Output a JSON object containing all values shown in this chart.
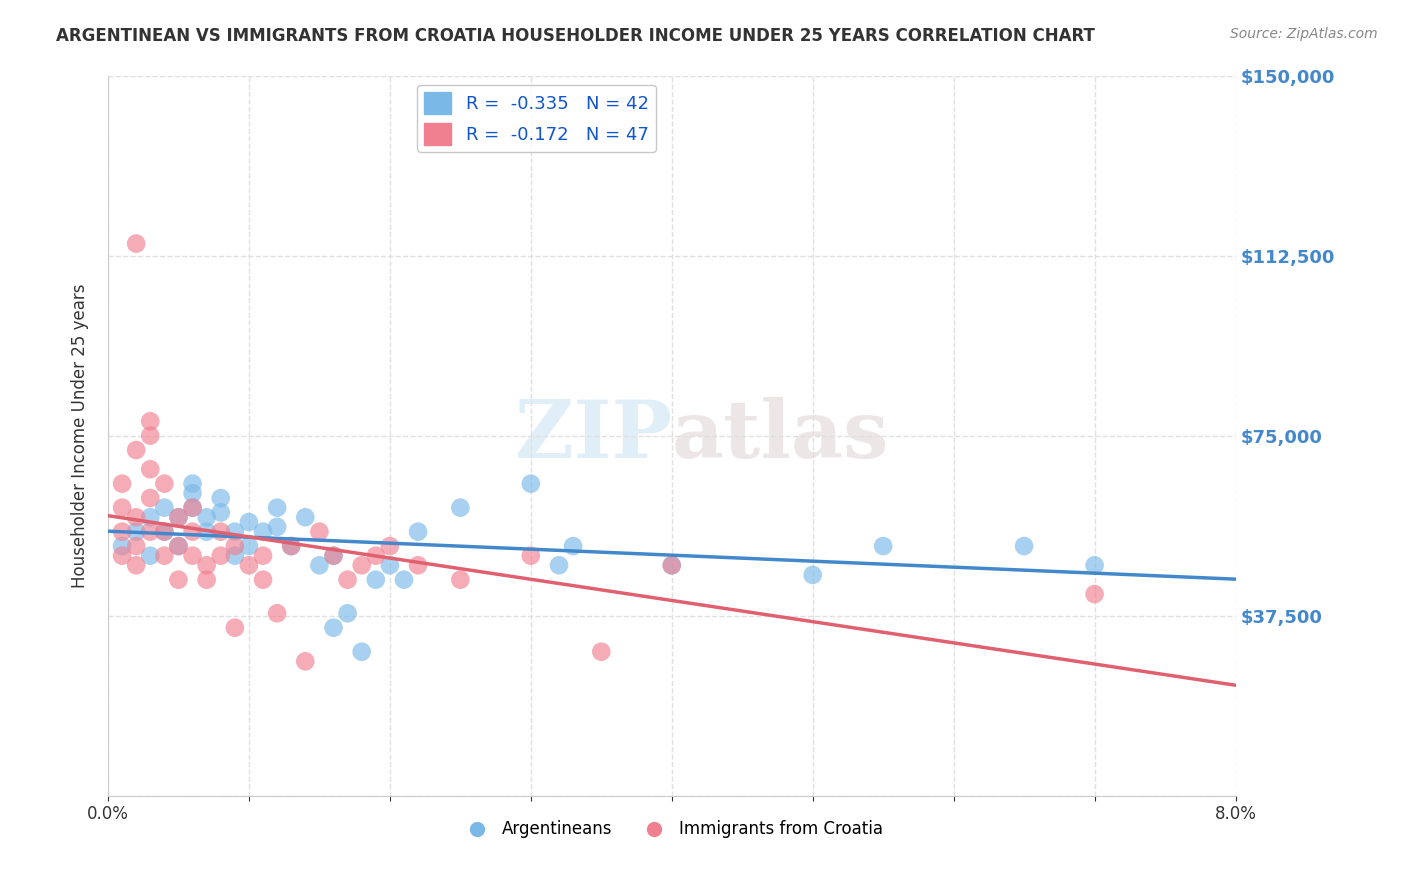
{
  "title": "ARGENTINEAN VS IMMIGRANTS FROM CROATIA HOUSEHOLDER INCOME UNDER 25 YEARS CORRELATION CHART",
  "source": "Source: ZipAtlas.com",
  "ylabel": "Householder Income Under 25 years",
  "xlim": [
    0.0,
    0.08
  ],
  "ylim": [
    0,
    150000
  ],
  "yticks": [
    0,
    37500,
    75000,
    112500,
    150000
  ],
  "ytick_labels": [
    "",
    "$37,500",
    "$75,000",
    "$112,500",
    "$150,000"
  ],
  "xticks": [
    0.0,
    0.01,
    0.02,
    0.03,
    0.04,
    0.05,
    0.06,
    0.07,
    0.08
  ],
  "xtick_labels": [
    "0.0%",
    "",
    "",
    "",
    "",
    "",
    "",
    "",
    "8.0%"
  ],
  "watermark_zip": "ZIP",
  "watermark_atlas": "atlas",
  "legend_entries": [
    {
      "label": "R =  -0.335   N = 42",
      "color": "#a8d0f0"
    },
    {
      "label": "R =  -0.172   N = 47",
      "color": "#f4a0b0"
    }
  ],
  "legend_label_argentineans": "Argentineans",
  "legend_label_croatia": "Immigrants from Croatia",
  "blue_color": "#7ab8e8",
  "pink_color": "#f08090",
  "blue_line_color": "#4488cc",
  "pink_line_color": "#e06070",
  "blue_scatter": [
    [
      0.001,
      52000
    ],
    [
      0.002,
      55000
    ],
    [
      0.003,
      58000
    ],
    [
      0.003,
      50000
    ],
    [
      0.004,
      60000
    ],
    [
      0.004,
      55000
    ],
    [
      0.005,
      52000
    ],
    [
      0.005,
      58000
    ],
    [
      0.006,
      65000
    ],
    [
      0.006,
      63000
    ],
    [
      0.006,
      60000
    ],
    [
      0.007,
      58000
    ],
    [
      0.007,
      55000
    ],
    [
      0.008,
      62000
    ],
    [
      0.008,
      59000
    ],
    [
      0.009,
      55000
    ],
    [
      0.009,
      50000
    ],
    [
      0.01,
      57000
    ],
    [
      0.01,
      52000
    ],
    [
      0.011,
      55000
    ],
    [
      0.012,
      60000
    ],
    [
      0.012,
      56000
    ],
    [
      0.013,
      52000
    ],
    [
      0.014,
      58000
    ],
    [
      0.015,
      48000
    ],
    [
      0.016,
      50000
    ],
    [
      0.016,
      35000
    ],
    [
      0.017,
      38000
    ],
    [
      0.018,
      30000
    ],
    [
      0.019,
      45000
    ],
    [
      0.02,
      48000
    ],
    [
      0.021,
      45000
    ],
    [
      0.022,
      55000
    ],
    [
      0.025,
      60000
    ],
    [
      0.03,
      65000
    ],
    [
      0.032,
      48000
    ],
    [
      0.033,
      52000
    ],
    [
      0.04,
      48000
    ],
    [
      0.05,
      46000
    ],
    [
      0.055,
      52000
    ],
    [
      0.065,
      52000
    ],
    [
      0.07,
      48000
    ]
  ],
  "pink_scatter": [
    [
      0.001,
      50000
    ],
    [
      0.001,
      55000
    ],
    [
      0.001,
      60000
    ],
    [
      0.001,
      65000
    ],
    [
      0.002,
      58000
    ],
    [
      0.002,
      52000
    ],
    [
      0.002,
      48000
    ],
    [
      0.002,
      72000
    ],
    [
      0.002,
      115000
    ],
    [
      0.003,
      55000
    ],
    [
      0.003,
      68000
    ],
    [
      0.003,
      75000
    ],
    [
      0.003,
      62000
    ],
    [
      0.003,
      78000
    ],
    [
      0.004,
      55000
    ],
    [
      0.004,
      65000
    ],
    [
      0.004,
      50000
    ],
    [
      0.005,
      58000
    ],
    [
      0.005,
      52000
    ],
    [
      0.005,
      45000
    ],
    [
      0.006,
      55000
    ],
    [
      0.006,
      60000
    ],
    [
      0.006,
      50000
    ],
    [
      0.007,
      48000
    ],
    [
      0.007,
      45000
    ],
    [
      0.008,
      50000
    ],
    [
      0.008,
      55000
    ],
    [
      0.009,
      52000
    ],
    [
      0.009,
      35000
    ],
    [
      0.01,
      48000
    ],
    [
      0.011,
      50000
    ],
    [
      0.011,
      45000
    ],
    [
      0.012,
      38000
    ],
    [
      0.013,
      52000
    ],
    [
      0.014,
      28000
    ],
    [
      0.015,
      55000
    ],
    [
      0.016,
      50000
    ],
    [
      0.017,
      45000
    ],
    [
      0.018,
      48000
    ],
    [
      0.019,
      50000
    ],
    [
      0.02,
      52000
    ],
    [
      0.022,
      48000
    ],
    [
      0.025,
      45000
    ],
    [
      0.03,
      50000
    ],
    [
      0.035,
      30000
    ],
    [
      0.04,
      48000
    ],
    [
      0.07,
      42000
    ]
  ],
  "background_color": "#ffffff",
  "grid_color": "#e0e0e0"
}
